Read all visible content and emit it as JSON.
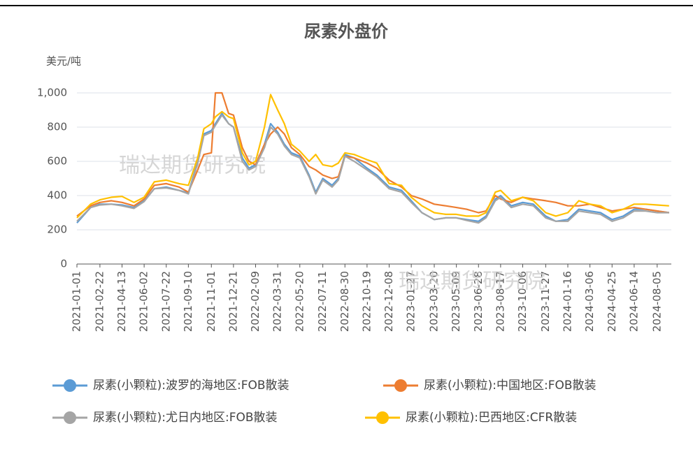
{
  "chart_data": {
    "type": "line",
    "title": "尿素外盘价",
    "y_label": "美元/吨",
    "watermarks": [
      "瑞达期货研究院",
      "瑞达期货研究院"
    ],
    "x": [
      "2021-01-01",
      "2021-02-01",
      "2021-02-22",
      "2021-03-20",
      "2021-04-13",
      "2021-05-10",
      "2021-06-02",
      "2021-06-25",
      "2021-07-22",
      "2021-08-20",
      "2021-09-10",
      "2021-10-01",
      "2021-10-15",
      "2021-11-01",
      "2021-11-10",
      "2021-11-25",
      "2021-12-10",
      "2021-12-21",
      "2022-01-10",
      "2022-01-25",
      "2022-02-09",
      "2022-03-01",
      "2022-03-15",
      "2022-03-31",
      "2022-04-15",
      "2022-05-01",
      "2022-05-20",
      "2022-06-10",
      "2022-06-25",
      "2022-07-11",
      "2022-08-01",
      "2022-08-15",
      "2022-08-30",
      "2022-09-20",
      "2022-10-19",
      "2022-11-10",
      "2022-12-08",
      "2023-01-05",
      "2023-01-27",
      "2023-02-20",
      "2023-03-20",
      "2023-04-15",
      "2023-05-09",
      "2023-06-01",
      "2023-06-28",
      "2023-07-15",
      "2023-08-05",
      "2023-08-17",
      "2023-09-10",
      "2023-10-06",
      "2023-10-30",
      "2023-11-27",
      "2023-12-20",
      "2024-01-16",
      "2024-02-10",
      "2024-03-06",
      "2024-03-30",
      "2024-04-25",
      "2024-05-20",
      "2024-06-14",
      "2024-07-10",
      "2024-08-05",
      "2024-09-01"
    ],
    "series": [
      {
        "name": "尿素(小颗粒):波罗的海地区:FOB散装",
        "color": "#5b9bd5",
        "values": [
          240,
          330,
          350,
          350,
          345,
          330,
          370,
          440,
          450,
          430,
          415,
          600,
          760,
          780,
          820,
          880,
          820,
          800,
          620,
          560,
          580,
          700,
          820,
          770,
          700,
          650,
          630,
          520,
          420,
          500,
          460,
          500,
          640,
          620,
          560,
          520,
          450,
          430,
          370,
          300,
          260,
          270,
          270,
          260,
          250,
          280,
          380,
          400,
          340,
          360,
          350,
          280,
          250,
          260,
          320,
          310,
          300,
          260,
          280,
          320,
          320,
          310,
          300
        ]
      },
      {
        "name": "尿素(小颗粒):中国地区:FOB散装",
        "color": "#ed7d31",
        "values": [
          280,
          340,
          360,
          370,
          360,
          340,
          380,
          460,
          470,
          450,
          420,
          550,
          640,
          650,
          1000,
          1000,
          880,
          870,
          680,
          600,
          580,
          700,
          760,
          800,
          760,
          680,
          640,
          570,
          550,
          520,
          500,
          510,
          630,
          620,
          590,
          560,
          490,
          450,
          400,
          380,
          350,
          340,
          330,
          320,
          300,
          310,
          400,
          380,
          360,
          390,
          380,
          370,
          360,
          340,
          340,
          350,
          330,
          310,
          320,
          330,
          320,
          310,
          300
        ]
      },
      {
        "name": "尿素(小颗粒):尤日内地区:FOB散装",
        "color": "#a5a5a5",
        "values": [
          250,
          330,
          345,
          350,
          340,
          325,
          365,
          440,
          445,
          430,
          410,
          590,
          750,
          770,
          810,
          870,
          820,
          800,
          600,
          550,
          570,
          680,
          800,
          760,
          690,
          640,
          620,
          510,
          410,
          490,
          450,
          490,
          630,
          600,
          550,
          510,
          440,
          420,
          360,
          300,
          260,
          270,
          270,
          255,
          240,
          270,
          370,
          390,
          330,
          350,
          340,
          270,
          250,
          250,
          310,
          300,
          290,
          250,
          270,
          310,
          310,
          300,
          300
        ]
      },
      {
        "name": "尿素(小颗粒):巴西地区:CFR散装",
        "color": "#ffc000",
        "values": [
          270,
          350,
          375,
          390,
          395,
          360,
          390,
          480,
          490,
          470,
          460,
          620,
          790,
          820,
          860,
          890,
          860,
          850,
          650,
          580,
          600,
          800,
          990,
          900,
          820,
          700,
          660,
          600,
          640,
          580,
          570,
          590,
          650,
          640,
          610,
          590,
          470,
          460,
          390,
          340,
          300,
          290,
          290,
          280,
          280,
          300,
          420,
          430,
          370,
          390,
          370,
          300,
          280,
          300,
          370,
          350,
          340,
          300,
          320,
          350,
          350,
          345,
          340
        ]
      }
    ],
    "xlim": [
      "2021-01-01",
      "2024-09-06"
    ],
    "xticks": [
      "2021-01-01",
      "2021-02-22",
      "2021-04-13",
      "2021-06-02",
      "2021-07-22",
      "2021-09-10",
      "2021-11-01",
      "2021-12-21",
      "2022-02-09",
      "2022-03-31",
      "2022-05-20",
      "2022-07-11",
      "2022-08-30",
      "2022-10-19",
      "2022-12-08",
      "2023-01-27",
      "2023-03-20",
      "2023-05-09",
      "2023-06-28",
      "2023-08-17",
      "2023-10-06",
      "2023-11-27",
      "2024-01-16",
      "2024-03-06",
      "2024-04-25",
      "2024-06-14",
      "2024-08-05"
    ],
    "ylim": [
      0,
      1000
    ],
    "yticks": [
      0,
      200,
      400,
      600,
      800,
      {
        "value": 1000,
        "label": "1,000"
      }
    ],
    "grid": true,
    "legend": "bottom"
  }
}
